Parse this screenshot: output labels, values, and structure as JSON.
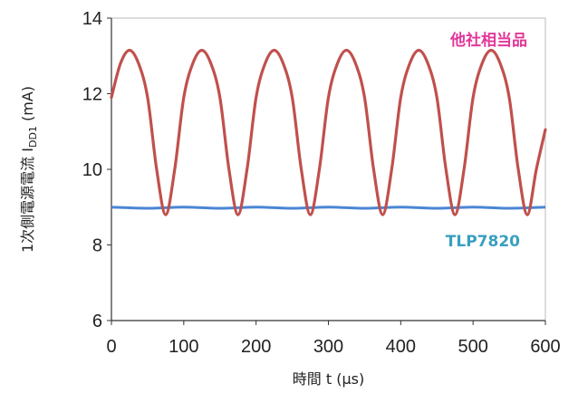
{
  "chart_data": {
    "type": "line",
    "xlabel": "時間  t (μs)",
    "ylabel": {
      "prefix": "1次側電源電流  I",
      "subscript": "DD1",
      "suffix": " (mA)"
    },
    "xlim": [
      0,
      600
    ],
    "ylim": [
      6,
      14
    ],
    "xticks": [
      "0",
      "100",
      "200",
      "300",
      "400",
      "500",
      "600"
    ],
    "yticks": [
      "6",
      "8",
      "10",
      "12",
      "14"
    ],
    "grid": false,
    "series": [
      {
        "name": "他社相当品",
        "color": "#c0504d",
        "description": "sinusoid, period 100 μs, peaks ≈13.15 mA at 25,125,...; troughs ≈8.8 mA at 75,175,...",
        "x": [
          0,
          12.5,
          25,
          37.5,
          50,
          62.5,
          75,
          87.5,
          100,
          112.5,
          125,
          137.5,
          150,
          162.5,
          175,
          187.5,
          200,
          212.5,
          225,
          237.5,
          250,
          262.5,
          275,
          287.5,
          300,
          312.5,
          325,
          337.5,
          350,
          362.5,
          375,
          387.5,
          400,
          412.5,
          425,
          437.5,
          450,
          462.5,
          475,
          487.5,
          500,
          512.5,
          525,
          537.5,
          550,
          562.5,
          575,
          587.5,
          600
        ],
        "y": [
          11.9,
          12.8,
          13.15,
          12.8,
          11.9,
          10.0,
          8.8,
          10.0,
          11.9,
          12.8,
          13.15,
          12.8,
          11.9,
          10.0,
          8.8,
          10.0,
          11.9,
          12.8,
          13.15,
          12.8,
          11.9,
          10.0,
          8.8,
          10.0,
          11.9,
          12.8,
          13.15,
          12.8,
          11.9,
          10.0,
          8.8,
          10.0,
          11.9,
          12.8,
          13.15,
          12.8,
          11.9,
          10.0,
          8.8,
          10.0,
          11.9,
          12.8,
          13.15,
          12.8,
          11.9,
          10.0,
          8.8,
          10.0,
          11.05
        ]
      },
      {
        "name": "TLP7820",
        "color": "#4a86d4",
        "label_color": "#3a9fbf",
        "x": [
          0,
          50,
          100,
          150,
          200,
          250,
          300,
          350,
          400,
          450,
          500,
          550,
          600
        ],
        "y": [
          9.0,
          8.97,
          9.0,
          8.97,
          9.0,
          8.97,
          9.0,
          8.97,
          9.0,
          8.97,
          9.0,
          8.97,
          9.0
        ]
      }
    ]
  }
}
